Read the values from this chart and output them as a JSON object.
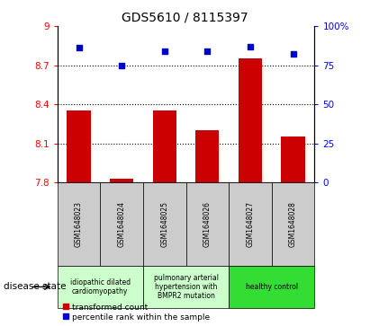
{
  "title": "GDS5610 / 8115397",
  "samples": [
    "GSM1648023",
    "GSM1648024",
    "GSM1648025",
    "GSM1648026",
    "GSM1648027",
    "GSM1648028"
  ],
  "bar_values": [
    8.35,
    7.83,
    8.35,
    8.2,
    8.75,
    8.15
  ],
  "dot_values": [
    86,
    75,
    84,
    84,
    87,
    82
  ],
  "ylim_left": [
    7.8,
    9.0
  ],
  "ylim_right": [
    0,
    100
  ],
  "yticks_left": [
    7.8,
    8.1,
    8.4,
    8.7,
    9.0
  ],
  "ytick_labels_left": [
    "7.8",
    "8.1",
    "8.4",
    "8.7",
    "9"
  ],
  "yticks_right": [
    0,
    25,
    50,
    75,
    100
  ],
  "ytick_labels_right": [
    "0",
    "25",
    "50",
    "75",
    "100%"
  ],
  "bar_color": "#cc0000",
  "dot_color": "#0000cc",
  "bar_bottom": 7.8,
  "disease_groups": [
    {
      "label": "idiopathic dilated\ncardiomyopathy",
      "color": "#ccffcc",
      "indices": [
        0,
        1
      ]
    },
    {
      "label": "pulmonary arterial\nhypertension with\nBMPR2 mutation",
      "color": "#ccffcc",
      "indices": [
        2,
        3
      ]
    },
    {
      "label": "healthy control",
      "color": "#33dd33",
      "indices": [
        4,
        5
      ]
    }
  ],
  "sample_box_color": "#cccccc",
  "legend_bar_label": "transformed count",
  "legend_dot_label": "percentile rank within the sample",
  "disease_state_label": "disease state",
  "hgrid_dotted_values": [
    8.1,
    8.4,
    8.7
  ],
  "figsize": [
    4.11,
    3.63
  ],
  "dpi": 100
}
